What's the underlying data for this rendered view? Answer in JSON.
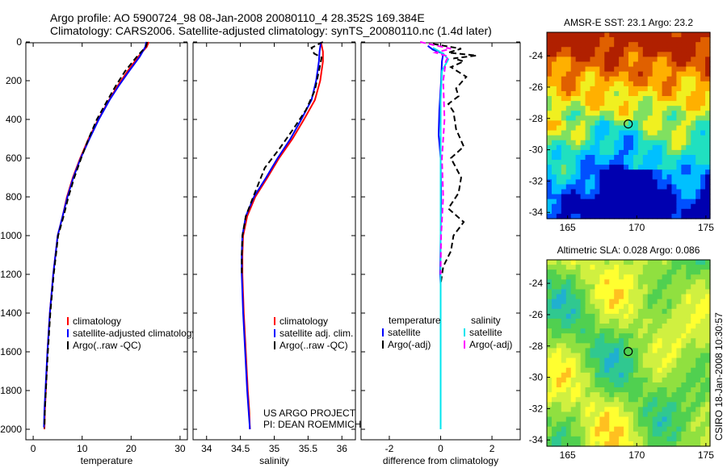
{
  "header": {
    "line1": "Argo profile: AO 5900724_98 08-Jan-2008 20080110_4 28.352S 169.384E",
    "line2": "Climatology: CARS2006. Satellite-adjusted climatology: synTS_20080110.nc (1.4d later)"
  },
  "colors": {
    "clim": "#ff0000",
    "sat": "#0000ff",
    "argo": "#000000",
    "sat_s": "#00e5ee",
    "argo_s": "#ff00ff"
  },
  "chart_data": [
    {
      "type": "line",
      "panel": "temperature",
      "xlabel": "temperature",
      "xlim": [
        -1.5,
        31.5
      ],
      "ylim": [
        2000,
        0
      ],
      "xticks": [
        "0",
        "10",
        "20",
        "30"
      ],
      "yticks": [
        "0",
        "200",
        "400",
        "600",
        "800",
        "1000",
        "1200",
        "1400",
        "1600",
        "1800",
        "2000"
      ],
      "legend": [
        "climatology",
        "satellite-adjusted climatology",
        "Argo(..raw -QC)"
      ],
      "series": [
        {
          "key": "clim",
          "name": "climatology",
          "color": "#ff0000",
          "dash": "",
          "x": [
            23.6,
            23.2,
            21.5,
            19.3,
            17.3,
            15.5,
            13.3,
            11.3,
            9.6,
            8.1,
            6.9,
            6.0,
            5.0,
            4.1,
            3.4,
            2.9,
            2.6,
            2.4,
            2.3
          ],
          "y": [
            0,
            25,
            75,
            150,
            225,
            300,
            400,
            500,
            600,
            700,
            800,
            900,
            1000,
            1200,
            1400,
            1600,
            1800,
            1900,
            2000
          ]
        },
        {
          "key": "sat",
          "name": "satellite-adjusted climatology",
          "color": "#0000ff",
          "dash": "",
          "x": [
            23.1,
            22.9,
            21.8,
            19.6,
            17.5,
            15.6,
            13.4,
            11.5,
            9.7,
            8.2,
            7.0,
            6.0,
            5.0,
            4.1,
            3.4,
            2.9,
            2.5,
            2.3,
            2.2
          ],
          "y": [
            0,
            25,
            75,
            150,
            225,
            300,
            400,
            500,
            600,
            700,
            800,
            900,
            1000,
            1200,
            1400,
            1600,
            1800,
            1900,
            1990
          ]
        },
        {
          "key": "argo",
          "name": "Argo(..raw -QC)",
          "color": "#000000",
          "dash": "7,4",
          "x": [
            23.3,
            23.0,
            21.2,
            18.8,
            16.9,
            15.2,
            13.0,
            11.3,
            9.8,
            8.4,
            7.2,
            6.2,
            5.1,
            4.2,
            3.5,
            3.0,
            2.6,
            2.4,
            2.3
          ],
          "y": [
            0,
            25,
            75,
            150,
            225,
            300,
            400,
            500,
            600,
            700,
            800,
            900,
            1000,
            1200,
            1400,
            1600,
            1800,
            1900,
            1995
          ]
        }
      ]
    },
    {
      "type": "line",
      "panel": "salinity",
      "xlabel": "salinity",
      "xlim": [
        33.8,
        36.2
      ],
      "ylim": [
        2000,
        0
      ],
      "xticks": [
        "34",
        "34.5",
        "35",
        "35.5",
        "36"
      ],
      "legend": [
        "climatology",
        "satellite adj. clim.",
        "Argo(..raw -QC)"
      ],
      "annotation": [
        "US ARGO PROJECT",
        "PI: DEAN ROEMMICH"
      ],
      "series": [
        {
          "key": "clim",
          "name": "climatology",
          "color": "#ff0000",
          "dash": "",
          "x": [
            35.69,
            35.72,
            35.72,
            35.68,
            35.6,
            35.44,
            35.27,
            35.07,
            34.9,
            34.72,
            34.6,
            34.54,
            34.53,
            34.53,
            34.55,
            34.58,
            34.61,
            34.63,
            34.64
          ],
          "y": [
            0,
            50,
            100,
            200,
            300,
            400,
            500,
            600,
            700,
            800,
            900,
            1000,
            1100,
            1200,
            1400,
            1600,
            1800,
            1900,
            2000
          ]
        },
        {
          "key": "sat",
          "name": "satellite adj. clim.",
          "color": "#0000ff",
          "dash": "",
          "x": [
            35.69,
            35.67,
            35.66,
            35.62,
            35.55,
            35.4,
            35.24,
            35.05,
            34.88,
            34.7,
            34.58,
            34.53,
            34.52,
            34.52,
            34.54,
            34.57,
            34.6,
            34.62,
            34.64
          ],
          "y": [
            0,
            50,
            100,
            200,
            300,
            400,
            500,
            600,
            700,
            800,
            900,
            1000,
            1100,
            1200,
            1400,
            1600,
            1800,
            1900,
            2000
          ]
        },
        {
          "key": "argo",
          "name": "Argo(..raw -QC)",
          "color": "#000000",
          "dash": "7,4",
          "x": [
            35.72,
            35.55,
            35.59,
            35.7,
            35.66,
            35.6,
            35.47,
            35.28,
            35.08,
            34.86,
            34.69,
            34.58,
            34.53,
            34.52,
            34.52
          ],
          "y": [
            0,
            30,
            60,
            80,
            150,
            250,
            350,
            450,
            550,
            650,
            800,
            900,
            1000,
            1100,
            1200
          ]
        }
      ]
    },
    {
      "type": "line",
      "panel": "difference",
      "xlabel": "difference from climatology",
      "xlim": [
        -3.1,
        3.1
      ],
      "ylim": [
        2000,
        0
      ],
      "xticks": [
        "-2",
        "0",
        "2"
      ],
      "legend_temperature": [
        "temperature",
        "satellite",
        "Argo(-adj)"
      ],
      "legend_salinity": [
        "salinity",
        "satellite",
        "Argo(-adj)"
      ],
      "series": [
        {
          "key": "sat_t",
          "name": "temperature satellite",
          "color": "#0000ff",
          "dash": "",
          "x": [
            -0.5,
            -0.3,
            0.1,
            0.05,
            0.02,
            -0.05,
            -0.08,
            -0.05,
            0.0,
            0.02,
            0.0,
            -0.02,
            0.0
          ],
          "y": [
            20,
            40,
            60,
            100,
            200,
            350,
            480,
            520,
            600,
            800,
            1000,
            1200,
            1250
          ]
        },
        {
          "key": "argo_t",
          "name": "temperature Argo(-adj)",
          "color": "#000000",
          "dash": "7,4",
          "x": [
            -0.3,
            0.8,
            0.3,
            1.4,
            0.5,
            0.9,
            0.4,
            1.0,
            0.6,
            0.7,
            0.3,
            0.5,
            0.6,
            0.9,
            0.4,
            0.8,
            0.7,
            0.3,
            0.9,
            0.5,
            0.4,
            0.1,
            0.0
          ],
          "y": [
            10,
            35,
            55,
            70,
            85,
            100,
            130,
            180,
            240,
            280,
            320,
            360,
            450,
            540,
            600,
            700,
            780,
            860,
            930,
            1000,
            1080,
            1160,
            1250
          ]
        },
        {
          "key": "sat_s",
          "name": "salinity satellite",
          "color": "#00e5ee",
          "dash": "",
          "x": [
            -0.3,
            0.1,
            0.3,
            0.05,
            0.0,
            0.0,
            0.0
          ],
          "y": [
            30,
            60,
            90,
            150,
            300,
            800,
            2000
          ]
        },
        {
          "key": "argo_s",
          "name": "salinity Argo(-adj)",
          "color": "#ff00ff",
          "dash": "7,4",
          "x": [
            -0.8,
            -0.3,
            0.4,
            -0.2,
            0.3,
            0.2,
            0.1,
            0.15,
            0.05,
            0.1,
            0.02,
            0.0
          ],
          "y": [
            0,
            15,
            35,
            55,
            75,
            100,
            200,
            400,
            600,
            800,
            1000,
            1200
          ]
        }
      ]
    },
    {
      "type": "heatmap",
      "panel": "sst-map",
      "title": "AMSR-E SST: 23.1 Argo: 23.2",
      "xlim": [
        163.5,
        175.3
      ],
      "ylim": [
        -34.4,
        -22.5
      ],
      "xticks": [
        "165",
        "170",
        "175"
      ],
      "yticks": [
        "-24",
        "-26",
        "-28",
        "-30",
        "-32",
        "-34"
      ],
      "argo_position": {
        "lon": 169.384,
        "lat": -28.352
      },
      "palette": [
        "#0000b0",
        "#0050ff",
        "#00c0ff",
        "#20e0c0",
        "#80e060",
        "#f0f020",
        "#ffb000",
        "#e06000",
        "#b02000"
      ]
    },
    {
      "type": "heatmap",
      "panel": "sla-map",
      "title": "Altimetric SLA: 0.028 Argo: 0.086",
      "xlim": [
        163.5,
        175.3
      ],
      "ylim": [
        -34.4,
        -22.5
      ],
      "xticks": [
        "165",
        "170",
        "175"
      ],
      "yticks": [
        "-24",
        "-26",
        "-28",
        "-30",
        "-32",
        "-34"
      ],
      "argo_position": {
        "lon": 169.384,
        "lat": -28.352
      },
      "palette": [
        "#20b0d0",
        "#30c890",
        "#50d050",
        "#90e040",
        "#d0f040",
        "#ffff30",
        "#ffc020",
        "#ff8000"
      ]
    }
  ],
  "footer": {
    "stamp": "CSIRO 18-Jan-2008 10:30:57"
  }
}
